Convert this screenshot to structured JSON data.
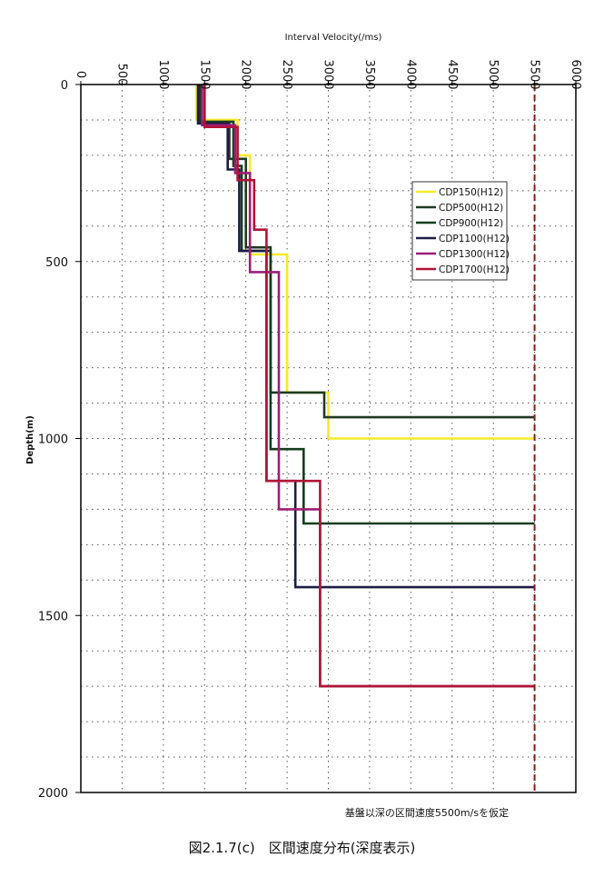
{
  "chart_data": {
    "type": "line",
    "xlabel": "Interval Velocity(/ms)",
    "ylabel": "Depth(m)",
    "xlim": [
      0,
      6000
    ],
    "ylim": [
      0,
      2000
    ],
    "y_inverted": true,
    "x_axis_position": "top",
    "x_ticks": [
      0,
      500,
      1000,
      1500,
      2000,
      2500,
      3000,
      3500,
      4000,
      4500,
      5000,
      5500,
      6000
    ],
    "y_ticks": [
      0,
      500,
      1000,
      1500,
      2000
    ],
    "grid": "dotted",
    "legend_position": "upper-right",
    "reference_line": {
      "velocity": 5500,
      "color": "#8b1a1a",
      "style": "dashed"
    },
    "note": "基盤以深の区間速度5500m/sを仮定",
    "series": [
      {
        "name": "CDP150(H12)",
        "color": "#f5ea2a",
        "steps": [
          [
            1400,
            0
          ],
          [
            1400,
            100
          ],
          [
            1900,
            100
          ],
          [
            1900,
            200
          ],
          [
            2050,
            200
          ],
          [
            2050,
            480
          ],
          [
            2500,
            480
          ],
          [
            2500,
            870
          ],
          [
            3000,
            870
          ],
          [
            3000,
            1000
          ],
          [
            5500,
            1000
          ]
        ]
      },
      {
        "name": "CDP500(H12)",
        "color": "#1e3a22",
        "steps": [
          [
            1450,
            0
          ],
          [
            1450,
            110
          ],
          [
            1800,
            110
          ],
          [
            1800,
            210
          ],
          [
            2000,
            210
          ],
          [
            2000,
            460
          ],
          [
            2300,
            460
          ],
          [
            2300,
            870
          ],
          [
            2950,
            870
          ],
          [
            2950,
            940
          ],
          [
            5500,
            940
          ]
        ]
      },
      {
        "name": "CDP900(H12)",
        "color": "#163d1e",
        "steps": [
          [
            1430,
            0
          ],
          [
            1430,
            105
          ],
          [
            1850,
            105
          ],
          [
            1850,
            230
          ],
          [
            1950,
            230
          ],
          [
            1950,
            470
          ],
          [
            2300,
            470
          ],
          [
            2300,
            1030
          ],
          [
            2700,
            1030
          ],
          [
            2700,
            1240
          ],
          [
            5500,
            1240
          ]
        ]
      },
      {
        "name": "CDP1100(H12)",
        "color": "#1c1c44",
        "steps": [
          [
            1420,
            0
          ],
          [
            1420,
            110
          ],
          [
            1780,
            110
          ],
          [
            1780,
            240
          ],
          [
            1920,
            240
          ],
          [
            1920,
            470
          ],
          [
            2250,
            470
          ],
          [
            2250,
            1120
          ],
          [
            2600,
            1120
          ],
          [
            2600,
            1420
          ],
          [
            5500,
            1420
          ]
        ]
      },
      {
        "name": "CDP1300(H12)",
        "color": "#9c1e78",
        "steps": [
          [
            1470,
            0
          ],
          [
            1470,
            115
          ],
          [
            1870,
            115
          ],
          [
            1870,
            250
          ],
          [
            2050,
            250
          ],
          [
            2050,
            530
          ],
          [
            2400,
            530
          ],
          [
            2400,
            1200
          ],
          [
            2900,
            1200
          ],
          [
            2900,
            1700
          ],
          [
            5500,
            1700
          ]
        ]
      },
      {
        "name": "CDP1700(H12)",
        "color": "#b01537",
        "steps": [
          [
            1500,
            0
          ],
          [
            1500,
            120
          ],
          [
            1900,
            120
          ],
          [
            1900,
            270
          ],
          [
            2100,
            270
          ],
          [
            2100,
            410
          ],
          [
            2250,
            410
          ],
          [
            2250,
            1120
          ],
          [
            2900,
            1120
          ],
          [
            2900,
            1700
          ],
          [
            5500,
            1700
          ]
        ]
      }
    ]
  },
  "caption": "図2.1.7(c)　区間速度分布(深度表示)"
}
